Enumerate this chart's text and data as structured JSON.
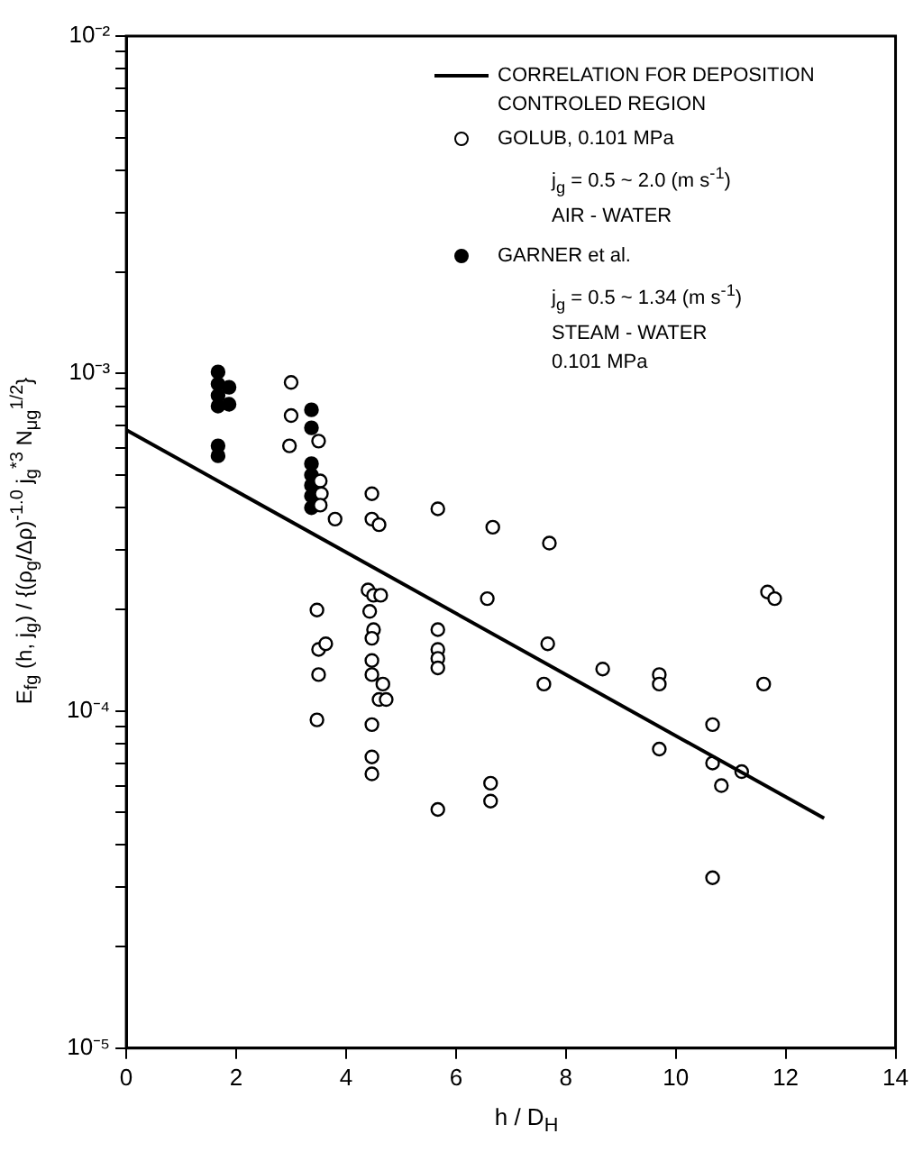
{
  "chart_data": {
    "type": "scatter",
    "xlabel": "h / D$_{H}$",
    "ylabel": "E$_{fg}$ (h, j$_{g}$) / {(ρ$_{g}$/Δρ)$^{-1.0}$ j$_{g}$$^{*3}$ N$_{μg}$$^{1/2}$}",
    "xlim": [
      0,
      14
    ],
    "xticks": [
      0,
      2,
      4,
      6,
      8,
      10,
      12,
      14
    ],
    "ylim": [
      1e-05,
      0.01
    ],
    "yticks": [
      {
        "value": 1e-05,
        "label": "10⁻⁵"
      },
      {
        "value": 2e-05,
        "label": null
      },
      {
        "value": 3e-05,
        "label": null
      },
      {
        "value": 4e-05,
        "label": null
      },
      {
        "value": 5e-05,
        "label": null
      },
      {
        "value": 6e-05,
        "label": null
      },
      {
        "value": 7e-05,
        "label": null
      },
      {
        "value": 8e-05,
        "label": null
      },
      {
        "value": 9e-05,
        "label": null
      },
      {
        "value": 0.0001,
        "label": "10⁻⁴"
      },
      {
        "value": 0.0002,
        "label": null
      },
      {
        "value": 0.0003,
        "label": null
      },
      {
        "value": 0.0004,
        "label": null
      },
      {
        "value": 0.0005,
        "label": null
      },
      {
        "value": 0.0006,
        "label": null
      },
      {
        "value": 0.0007,
        "label": null
      },
      {
        "value": 0.0008,
        "label": null
      },
      {
        "value": 0.0009,
        "label": null
      },
      {
        "value": 0.001,
        "label": "10⁻³"
      },
      {
        "value": 0.002,
        "label": null
      },
      {
        "value": 0.003,
        "label": null
      },
      {
        "value": 0.004,
        "label": null
      },
      {
        "value": 0.005,
        "label": null
      },
      {
        "value": 0.006,
        "label": null
      },
      {
        "value": 0.007,
        "label": null
      },
      {
        "value": 0.008,
        "label": null
      },
      {
        "value": 0.009,
        "label": null
      },
      {
        "value": 0.01,
        "label": "10⁻²"
      }
    ],
    "log": "y",
    "grid": false,
    "annotations": [
      "j$_{g}$ = 0.5 ~ 2.0 (m s$^{-1}$)\nAIR - WATER",
      "j$_{g}$ = 0.5 ~ 1.34 (m s$^{-1}$)\nSTEAM - WATER\n0.101 MPa"
    ],
    "legend": "top right",
    "series": [
      {
        "name": "CORRELATION FOR DEPOSITION\nCONTROLED REGION",
        "type": "line",
        "color": "#000000",
        "marker": "none",
        "x": [
          0,
          12.7
        ],
        "values": [
          0.00068,
          4.8e-05
        ]
      },
      {
        "name": "GOLUB, 0.101 MPa",
        "color": "#ffffff",
        "marker": "circle",
        "x": [
          3.0,
          3.0,
          2.97,
          3.5,
          3.53,
          3.55,
          3.53,
          3.8,
          4.47,
          4.47,
          4.6,
          5.67,
          6.67,
          7.7,
          6.57,
          11.67,
          11.8,
          4.4,
          4.5,
          4.63,
          4.43,
          3.47,
          4.5,
          4.47,
          3.5,
          3.63,
          3.5,
          4.47,
          4.47,
          4.67,
          4.6,
          4.73,
          3.47,
          4.47,
          5.67,
          5.67,
          5.67,
          5.67,
          7.67,
          7.6,
          8.67,
          9.7,
          9.7,
          11.6,
          10.67,
          9.7,
          4.47,
          4.47,
          5.67,
          6.63,
          6.63,
          10.67,
          10.83,
          11.2,
          10.67
        ],
        "values": [
          0.00094,
          0.00075,
          0.00061,
          0.00063,
          0.00048,
          0.00044,
          0.000407,
          0.00037,
          0.00044,
          0.00037,
          0.000356,
          0.000397,
          0.00035,
          0.000314,
          0.000215,
          0.000225,
          0.000215,
          0.000228,
          0.00022,
          0.00022,
          0.000197,
          0.000199,
          0.000174,
          0.000164,
          0.000152,
          0.000158,
          0.000128,
          0.000141,
          0.000128,
          0.00012,
          0.000108,
          0.000108,
          9.4e-05,
          9.1e-05,
          0.000174,
          0.000152,
          0.000143,
          0.000134,
          0.000158,
          0.00012,
          0.000133,
          0.000128,
          0.00012,
          0.00012,
          9.1e-05,
          7.7e-05,
          7.3e-05,
          6.5e-05,
          5.1e-05,
          6.1e-05,
          5.4e-05,
          7e-05,
          6e-05,
          6.6e-05,
          3.2e-05
        ]
      },
      {
        "name": "GARNER et al.",
        "color": "#000000",
        "marker": "circle",
        "x": [
          1.67,
          1.67,
          1.67,
          1.67,
          1.67,
          1.67,
          1.87,
          1.87,
          3.37,
          3.37,
          3.37,
          3.37,
          3.37,
          3.37,
          3.37
        ],
        "values": [
          0.00101,
          0.00093,
          0.00086,
          0.0008,
          0.00061,
          0.00057,
          0.00091,
          0.00081,
          0.00078,
          0.00069,
          0.00054,
          0.0005,
          0.000466,
          0.000433,
          0.0004
        ]
      }
    ]
  }
}
